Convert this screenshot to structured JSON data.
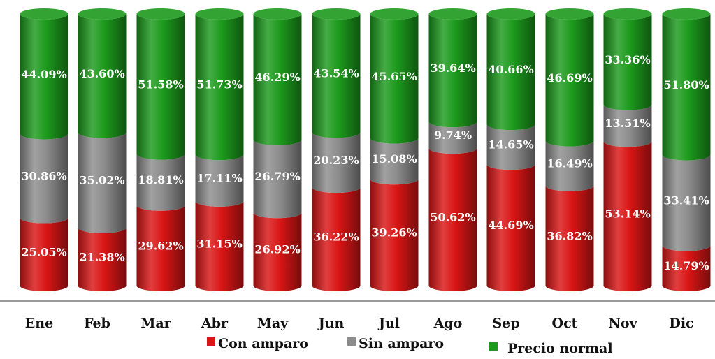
{
  "colors": {
    "con_amparo": "#d91515",
    "sin_amparo": "#8c8c8c",
    "precio_normal": "#1c9a1c"
  },
  "chart_data": {
    "type": "bar",
    "stacked": true,
    "percent_stacked": true,
    "categories": [
      "Ene",
      "Feb",
      "Mar",
      "Abr",
      "May",
      "Jun",
      "Jul",
      "Ago",
      "Sep",
      "Oct",
      "Nov",
      "Dic"
    ],
    "series": [
      {
        "name": "Con amparo",
        "color": "#d91515",
        "values": [
          25.05,
          21.38,
          29.62,
          31.15,
          26.92,
          36.22,
          39.26,
          50.62,
          44.69,
          36.82,
          53.14,
          14.79
        ],
        "labels": [
          "25.05%",
          "21.38%",
          "29.62%",
          "31.15%",
          "26.92%",
          "36.22%",
          "39.26%",
          "50.62%",
          "44.69%",
          "36.82%",
          "53.14%",
          "14.79%"
        ]
      },
      {
        "name": "Sin amparo",
        "color": "#8c8c8c",
        "values": [
          30.86,
          35.02,
          18.81,
          17.11,
          26.79,
          20.23,
          15.08,
          9.74,
          14.65,
          16.49,
          13.51,
          33.41
        ],
        "labels": [
          "30.86%",
          "35.02%",
          "18.81%",
          "17.11%",
          "26.79%",
          "20.23%",
          "15.08%",
          "9.74%",
          "14.65%",
          "16.49%",
          "13.51%",
          "33.41%"
        ]
      },
      {
        "name": "Precio normal",
        "color": "#1c9a1c",
        "values": [
          44.09,
          43.6,
          51.58,
          51.73,
          46.29,
          43.54,
          45.65,
          39.64,
          40.66,
          46.69,
          33.36,
          51.8
        ],
        "labels": [
          "44.09%",
          "43.60%",
          "51.58%",
          "51.73%",
          "46.29%",
          "43.54%",
          "45.65%",
          "39.64%",
          "40.66%",
          "46.69%",
          "33.36%",
          "51.80%"
        ]
      }
    ],
    "title": "",
    "xlabel": "",
    "ylabel": "",
    "ylim": [
      0,
      100
    ],
    "grid": false,
    "legend_position": "bottom"
  }
}
